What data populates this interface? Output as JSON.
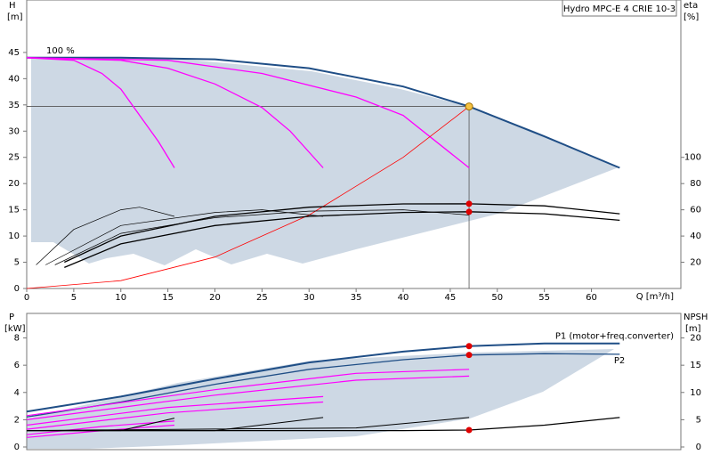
{
  "chart_data": [
    {
      "type": "line",
      "title": "Hydro MPC-E 4 CRIE 10-3",
      "ylabel": "H",
      "yunit": "[m]",
      "y2label": "eta",
      "y2unit": "[%]",
      "xlabel": "Q [m³/h]",
      "annotation": "100 %",
      "xlim": [
        0,
        69.5
      ],
      "xticks": [
        0,
        5,
        10,
        15,
        20,
        25,
        30,
        35,
        40,
        45,
        50,
        55,
        60
      ],
      "ylim": [
        0,
        55
      ],
      "yticks": [
        0,
        5,
        10,
        15,
        20,
        25,
        30,
        35,
        40,
        45
      ],
      "y2lim": [
        0,
        220
      ],
      "y2ticks": [
        20,
        40,
        60,
        80,
        100
      ],
      "duty_point": {
        "x": 47,
        "y": 34.7,
        "color": "#f5c242"
      },
      "marker_color": "#e00000",
      "series": [
        {
          "color": "#1f4e86",
          "width": 2,
          "x": [
            0,
            10,
            20,
            30,
            40,
            47,
            55,
            63
          ],
          "values": [
            44,
            44,
            43.7,
            42,
            38.5,
            34.7,
            29,
            23
          ]
        },
        {
          "color": "#ff00ff",
          "width": 1.3,
          "x": [
            0,
            5,
            8,
            10,
            12,
            14,
            15.7
          ],
          "values": [
            44,
            43.5,
            41,
            38,
            33,
            28,
            23
          ]
        },
        {
          "color": "#ff00ff",
          "width": 1.3,
          "x": [
            0,
            10,
            15,
            20,
            25,
            28,
            31.5
          ],
          "values": [
            44,
            43.5,
            42,
            39,
            34.5,
            30,
            23
          ]
        },
        {
          "color": "#ff00ff",
          "width": 1.3,
          "x": [
            0,
            15,
            25,
            35,
            40,
            47
          ],
          "values": [
            44,
            43.5,
            41,
            36.5,
            33,
            23
          ]
        },
        {
          "color": "#ff0000",
          "width": 0.8,
          "x": [
            0,
            10,
            20,
            30,
            40,
            47
          ],
          "values": [
            0,
            1.5,
            6,
            14,
            25,
            34.7
          ]
        },
        {
          "color": "#000000",
          "width": 1.3,
          "axis": "y2",
          "marked": true,
          "x": [
            4,
            10,
            20,
            30,
            40,
            47,
            55,
            63
          ],
          "values": [
            20,
            40,
            55,
            62,
            64.5,
            64.6,
            63,
            57
          ]
        },
        {
          "color": "#000000",
          "width": 1.3,
          "axis": "y2",
          "marked": true,
          "x": [
            4,
            10,
            20,
            30,
            40,
            47,
            55,
            63
          ],
          "values": [
            16,
            34,
            48,
            55,
            58,
            58.5,
            57,
            52
          ]
        },
        {
          "color": "#000000",
          "width": 0.7,
          "axis": "y2",
          "x": [
            1,
            5,
            10,
            12,
            15.7
          ],
          "values": [
            18,
            45,
            60,
            62,
            55
          ]
        },
        {
          "color": "#000000",
          "width": 0.7,
          "axis": "y2",
          "x": [
            2,
            10,
            20,
            25,
            31.5
          ],
          "values": [
            18,
            48,
            58,
            60,
            55
          ]
        },
        {
          "color": "#000000",
          "width": 0.7,
          "axis": "y2",
          "x": [
            3,
            10,
            20,
            30,
            40,
            47
          ],
          "values": [
            18,
            42,
            54,
            59,
            60,
            56
          ]
        }
      ]
    },
    {
      "type": "line",
      "ylabel": "P",
      "yunit": "[kW]",
      "y2label": "NPSH",
      "y2unit": "[m]",
      "xlim": [
        0,
        69.5
      ],
      "ylim": [
        0,
        9.8
      ],
      "yticks": [
        0,
        2,
        4,
        6,
        8
      ],
      "y2lim": [
        0,
        24.5
      ],
      "y2ticks": [
        0,
        5,
        10,
        15,
        20
      ],
      "marker_color": "#e00000",
      "series": [
        {
          "name": "P1 (motor+freq.converter)",
          "color": "#1f4e86",
          "width": 2,
          "marked": true,
          "x": [
            0,
            10,
            20,
            30,
            40,
            47,
            55,
            63
          ],
          "values": [
            2.6,
            3.7,
            5.0,
            6.2,
            7.0,
            7.4,
            7.6,
            7.6
          ]
        },
        {
          "name": "P2",
          "color": "#1f4e86",
          "width": 1.3,
          "marked": true,
          "x": [
            0,
            10,
            20,
            30,
            40,
            47,
            55,
            63
          ],
          "values": [
            2.2,
            3.3,
            4.6,
            5.7,
            6.4,
            6.75,
            6.85,
            6.8
          ]
        },
        {
          "color": "#ff00ff",
          "width": 1.2,
          "x": [
            0,
            20,
            35,
            47
          ],
          "values": [
            2.3,
            4.2,
            5.4,
            5.7
          ]
        },
        {
          "color": "#ff00ff",
          "width": 1.2,
          "x": [
            0,
            20,
            35,
            47
          ],
          "values": [
            2.0,
            3.8,
            4.9,
            5.2
          ]
        },
        {
          "color": "#ff00ff",
          "width": 1.2,
          "x": [
            0,
            15,
            31.5
          ],
          "values": [
            1.6,
            2.9,
            3.7
          ]
        },
        {
          "color": "#ff00ff",
          "width": 1.2,
          "x": [
            0,
            15,
            31.5
          ],
          "values": [
            1.3,
            2.5,
            3.3
          ]
        },
        {
          "color": "#ff00ff",
          "width": 1.2,
          "x": [
            0,
            8,
            15.7
          ],
          "values": [
            0.9,
            1.5,
            1.9
          ]
        },
        {
          "color": "#ff00ff",
          "width": 1.2,
          "x": [
            0,
            8,
            15.7
          ],
          "values": [
            0.7,
            1.2,
            1.6
          ]
        },
        {
          "color": "#000000",
          "width": 1.3,
          "axis": "y2",
          "marked": true,
          "x": [
            0,
            20,
            40,
            47,
            55,
            63
          ],
          "values": [
            3,
            3,
            3,
            3.1,
            4,
            5.4
          ]
        },
        {
          "color": "#000000",
          "width": 1,
          "axis": "y2",
          "x": [
            0,
            10,
            15.7
          ],
          "values": [
            3,
            3,
            5.3
          ]
        },
        {
          "color": "#000000",
          "width": 1,
          "axis": "y2",
          "x": [
            0,
            20,
            31.5
          ],
          "values": [
            3,
            3,
            5.4
          ]
        },
        {
          "color": "#000000",
          "width": 1,
          "axis": "y2",
          "x": [
            0,
            35,
            47
          ],
          "values": [
            3,
            3.5,
            5.4
          ]
        }
      ]
    }
  ]
}
